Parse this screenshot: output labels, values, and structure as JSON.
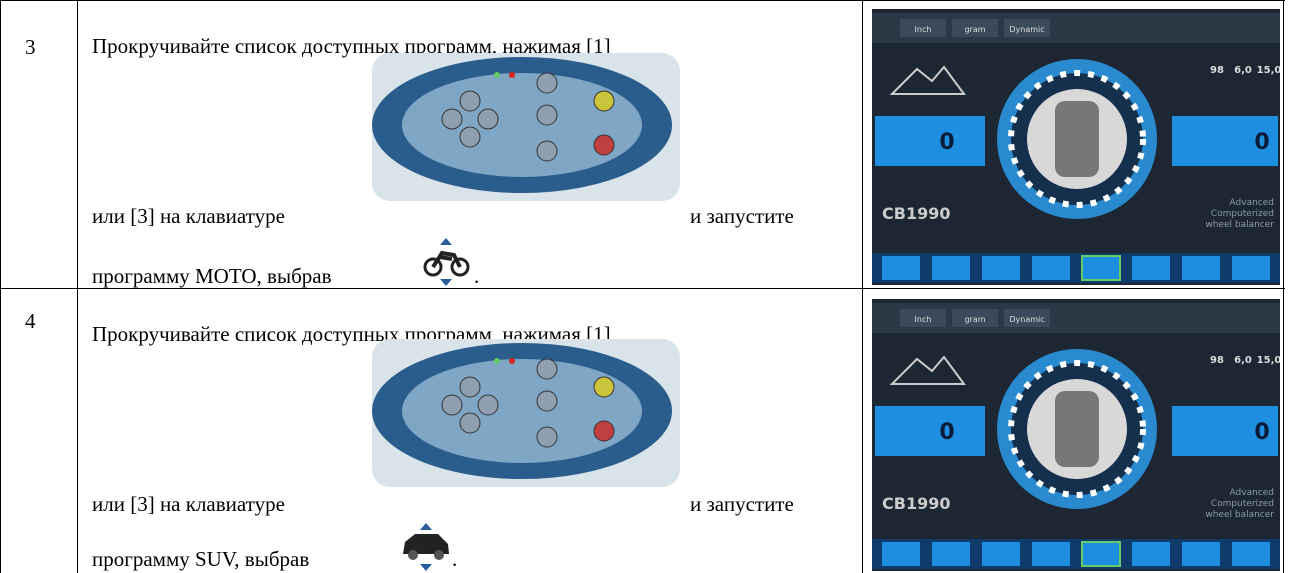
{
  "rows": [
    {
      "step": "3",
      "line1": "Прокручивайте список доступных программ, нажимая [1]",
      "line2a": "или [3] на клавиатуре",
      "line2b": "и запустите",
      "line3": "программу МОТО, выбрав",
      "line3_end": ".",
      "screen": {
        "tabs": [
          "Inch",
          "gram",
          "Dynamic"
        ],
        "left_value": "0",
        "right_value": "0",
        "dims": [
          "98",
          "6,0",
          "15,0"
        ],
        "model": "CB1990",
        "caption": [
          "Advanced",
          "Computerized",
          "wheel balancer"
        ]
      }
    },
    {
      "step": "4",
      "line1": "Прокручивайте список доступных программ, нажимая [1]",
      "line2a": "или [3] на клавиатуре",
      "line2b": "и запустите",
      "line3": "программу SUV, выбрав",
      "line3_end": ".",
      "screen": {
        "tabs": [
          "Inch",
          "gram",
          "Dynamic"
        ],
        "left_value": "0",
        "right_value": "0",
        "dims": [
          "98",
          "6,0",
          "15,0"
        ],
        "model": "CB1990",
        "caption": [
          "Advanced",
          "Computerized",
          "wheel balancer"
        ]
      }
    }
  ]
}
